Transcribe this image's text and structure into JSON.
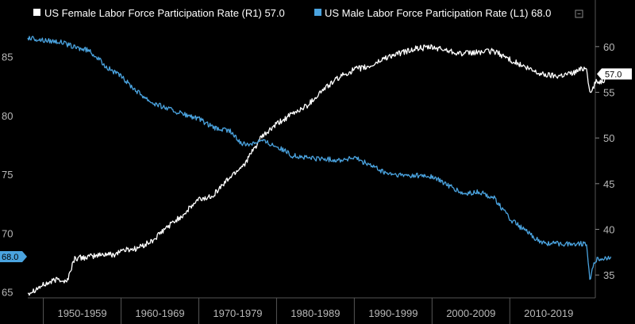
{
  "chart_data": {
    "type": "line",
    "title": "",
    "x_categories": [
      "1950-1959",
      "1960-1969",
      "1970-1979",
      "1980-1989",
      "1990-1999",
      "2000-2009",
      "2010-2019"
    ],
    "xlim": [
      1948,
      2021
    ],
    "left_axis": {
      "ticks": [
        65,
        70,
        75,
        80,
        85
      ],
      "ylim": [
        64.5,
        87.8
      ]
    },
    "right_axis": {
      "ticks": [
        35,
        40,
        45,
        50,
        55,
        60
      ],
      "ylim": [
        32.5,
        62.5
      ]
    },
    "grid": false,
    "legend_position": "top-left",
    "series": [
      {
        "name": "US Female Labor Force Participation Rate (R1) 57.0",
        "axis": "right",
        "color": "#ffffff",
        "last_value_label": "57.0",
        "points": [
          [
            1948,
            33
          ],
          [
            1950,
            33.9
          ],
          [
            1952,
            34.6
          ],
          [
            1953,
            34.2
          ],
          [
            1954,
            36.8
          ],
          [
            1956,
            37
          ],
          [
            1958,
            37.3
          ],
          [
            1959,
            37.2
          ],
          [
            1960,
            37.7
          ],
          [
            1962,
            37.9
          ],
          [
            1964,
            38.7
          ],
          [
            1966,
            40.3
          ],
          [
            1968,
            41.6
          ],
          [
            1970,
            43.3
          ],
          [
            1971,
            43.4
          ],
          [
            1972,
            43.9
          ],
          [
            1974,
            45.7
          ],
          [
            1976,
            47.3
          ],
          [
            1978,
            50
          ],
          [
            1980,
            51.5
          ],
          [
            1982,
            52.6
          ],
          [
            1984,
            53.6
          ],
          [
            1986,
            55.3
          ],
          [
            1988,
            56.6
          ],
          [
            1990,
            57.5
          ],
          [
            1992,
            57.8
          ],
          [
            1994,
            58.8
          ],
          [
            1996,
            59.3
          ],
          [
            1998,
            59.8
          ],
          [
            2000,
            59.9
          ],
          [
            2002,
            59.6
          ],
          [
            2004,
            59.2
          ],
          [
            2006,
            59.4
          ],
          [
            2008,
            59.5
          ],
          [
            2010,
            58.6
          ],
          [
            2012,
            57.7
          ],
          [
            2014,
            57
          ],
          [
            2016,
            56.8
          ],
          [
            2018,
            57.1
          ],
          [
            2019.9,
            57.8
          ],
          [
            2020.3,
            54.7
          ],
          [
            2021,
            56.1
          ],
          [
            2022,
            56.3
          ],
          [
            2023,
            57
          ]
        ]
      },
      {
        "name": "US Male Labor Force Participation Rate (L1) 68.0",
        "axis": "left",
        "color": "#4aa3df",
        "last_value_label": "68.0",
        "points": [
          [
            1948,
            86.6
          ],
          [
            1950,
            86.4
          ],
          [
            1952,
            86.3
          ],
          [
            1954,
            85.8
          ],
          [
            1956,
            85.5
          ],
          [
            1958,
            84.2
          ],
          [
            1960,
            83.3
          ],
          [
            1962,
            82.1
          ],
          [
            1964,
            81.1
          ],
          [
            1966,
            80.6
          ],
          [
            1968,
            80.1
          ],
          [
            1970,
            79.7
          ],
          [
            1972,
            78.9
          ],
          [
            1974,
            78.7
          ],
          [
            1975,
            77.9
          ],
          [
            1976,
            77.5
          ],
          [
            1978,
            77.9
          ],
          [
            1980,
            77.4
          ],
          [
            1982,
            76.6
          ],
          [
            1984,
            76.4
          ],
          [
            1986,
            76.3
          ],
          [
            1988,
            76.2
          ],
          [
            1990,
            76.4
          ],
          [
            1992,
            75.8
          ],
          [
            1994,
            75.1
          ],
          [
            1996,
            74.9
          ],
          [
            1998,
            74.9
          ],
          [
            2000,
            74.8
          ],
          [
            2002,
            74.1
          ],
          [
            2004,
            73.3
          ],
          [
            2006,
            73.5
          ],
          [
            2008,
            73
          ],
          [
            2010,
            71.2
          ],
          [
            2012,
            70.2
          ],
          [
            2014,
            69.2
          ],
          [
            2016,
            69.1
          ],
          [
            2018,
            69.1
          ],
          [
            2019.9,
            69.1
          ],
          [
            2020.3,
            66.1
          ],
          [
            2021,
            67.7
          ],
          [
            2022,
            67.8
          ],
          [
            2023,
            68
          ]
        ]
      }
    ]
  }
}
